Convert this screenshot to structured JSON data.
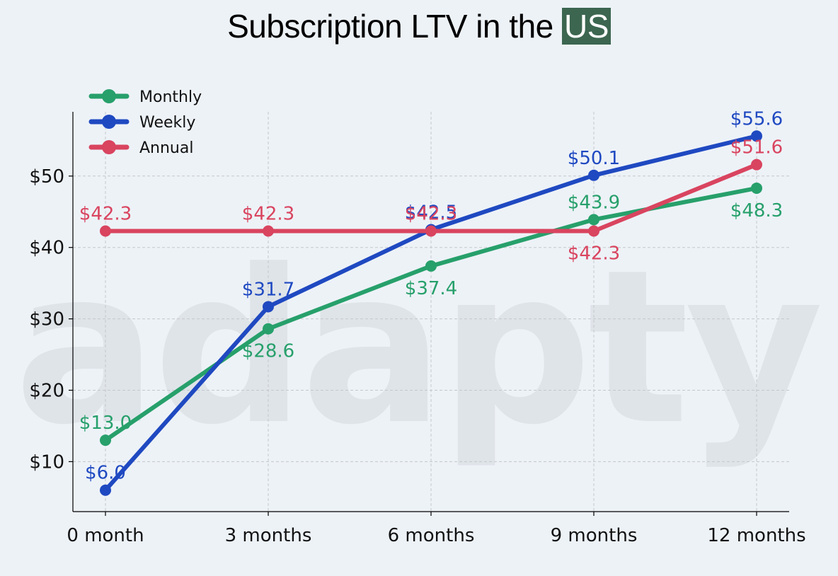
{
  "title": {
    "prefix": "Subscription LTV in the ",
    "highlight": "US"
  },
  "watermark": "adapty",
  "colors": {
    "background": "#edf2f7",
    "highlight_bg": "#3c6650",
    "monthly": "#27a06b",
    "weekly": "#1f49c1",
    "annual": "#d9445f",
    "grid": "#c4c8cc"
  },
  "chart_data": {
    "type": "line",
    "title": "Subscription LTV in the US",
    "xlabel": "",
    "ylabel": "",
    "categories": [
      "0 month",
      "3 months",
      "6 months",
      "9 months",
      "12 months"
    ],
    "y_ticks": [
      10,
      20,
      30,
      40,
      50
    ],
    "y_tick_labels": [
      "$10",
      "$20",
      "$30",
      "$40",
      "$50"
    ],
    "ylim": [
      3,
      59
    ],
    "grid": true,
    "legend_position": "top-left",
    "series": [
      {
        "name": "Monthly",
        "color": "#27a06b",
        "values": [
          13.0,
          28.6,
          37.4,
          43.9,
          48.3
        ],
        "labels": [
          "$13.0",
          "$28.6",
          "$37.4",
          "$43.9",
          "$48.3"
        ],
        "label_pos": [
          "above",
          "below",
          "below",
          "above",
          "below"
        ]
      },
      {
        "name": "Weekly",
        "color": "#1f49c1",
        "values": [
          6.0,
          31.7,
          42.5,
          50.1,
          55.6
        ],
        "labels": [
          "$6.0",
          "$31.7",
          "$42.5",
          "$50.1",
          "$55.6"
        ],
        "label_pos": [
          "above",
          "above",
          "above",
          "above",
          "above"
        ]
      },
      {
        "name": "Annual",
        "color": "#d9445f",
        "values": [
          42.3,
          42.3,
          42.3,
          42.3,
          51.6
        ],
        "labels": [
          "$42.3",
          "$42.3",
          "$42.3",
          "$42.3",
          "$51.6"
        ],
        "label_pos": [
          "above",
          "above",
          "above",
          "below",
          "above"
        ]
      }
    ]
  }
}
